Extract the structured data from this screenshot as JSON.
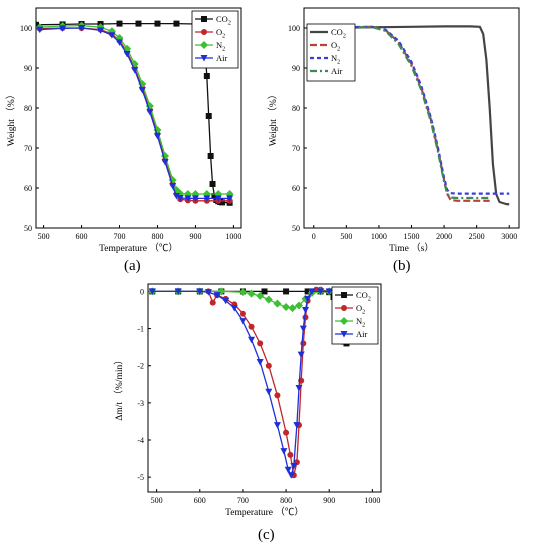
{
  "colors": {
    "co2": "#111111",
    "o2": "#c0262a",
    "n2": "#3dbf34",
    "air": "#1f2fd6",
    "b_co2": "#444444",
    "b_o2": "#b8433a",
    "b_n2": "#3a3ce0",
    "b_air": "#3d8a55"
  },
  "panel_labels": {
    "a": "(a)",
    "b": "(b)",
    "c": "(c)"
  },
  "chart_data": [
    {
      "id": "a",
      "type": "line",
      "xlabel": "Temperature （℃）",
      "ylabel": "Weight （%）",
      "xlim": [
        480,
        1020
      ],
      "ylim": [
        50,
        105
      ],
      "xticks": [
        500,
        600,
        700,
        800,
        900,
        1000
      ],
      "yticks": [
        50,
        60,
        70,
        80,
        90,
        100
      ],
      "legend": "top-right",
      "series": [
        {
          "name": "CO2",
          "label_main": "CO",
          "label_sub": "2",
          "color": "co2",
          "marker": "square",
          "x": [
            480,
            550,
            600,
            650,
            700,
            750,
            800,
            850,
            900,
            910,
            920,
            925,
            930,
            935,
            940,
            945,
            950,
            955,
            960,
            965,
            970,
            990
          ],
          "y": [
            100.8,
            100.9,
            101.0,
            101.0,
            101.1,
            101.1,
            101.1,
            101.1,
            101.0,
            100.6,
            98.5,
            95.0,
            88.0,
            78.0,
            68.0,
            61.0,
            58.0,
            57.0,
            56.7,
            56.5,
            56.4,
            56.3
          ]
        },
        {
          "name": "O2",
          "label_main": "O",
          "label_sub": "2",
          "color": "o2",
          "marker": "circle",
          "x": [
            490,
            550,
            600,
            650,
            680,
            700,
            720,
            740,
            760,
            780,
            800,
            820,
            840,
            850,
            860,
            880,
            900,
            930,
            960,
            990
          ],
          "y": [
            99.8,
            100.0,
            100.0,
            99.6,
            98.5,
            96.8,
            94.0,
            90.0,
            85.0,
            79.5,
            73.5,
            67.0,
            61.0,
            58.5,
            57.2,
            56.9,
            56.8,
            56.8,
            56.8,
            56.8
          ]
        },
        {
          "name": "N2",
          "label_main": "N",
          "label_sub": "2",
          "color": "n2",
          "marker": "diamond",
          "x": [
            490,
            550,
            600,
            650,
            680,
            700,
            720,
            740,
            760,
            780,
            800,
            820,
            840,
            850,
            860,
            880,
            900,
            930,
            960,
            990
          ],
          "y": [
            100.2,
            100.5,
            100.6,
            100.2,
            99.2,
            97.5,
            94.8,
            91.0,
            86.0,
            80.5,
            74.5,
            68.0,
            62.0,
            59.5,
            58.6,
            58.5,
            58.5,
            58.5,
            58.5,
            58.5
          ]
        },
        {
          "name": "Air",
          "label_main": "Air",
          "label_sub": "",
          "color": "air",
          "marker": "tri-down",
          "x": [
            490,
            550,
            600,
            650,
            680,
            700,
            720,
            740,
            760,
            780,
            800,
            820,
            840,
            850,
            860,
            880,
            900,
            930,
            960,
            990
          ],
          "y": [
            99.6,
            99.9,
            100.0,
            99.4,
            98.2,
            96.4,
            93.5,
            89.5,
            84.5,
            79.0,
            73.0,
            66.5,
            60.5,
            58.0,
            57.5,
            57.4,
            57.4,
            57.4,
            57.4,
            57.4
          ]
        }
      ]
    },
    {
      "id": "b",
      "type": "line",
      "xlabel": "Time （s）",
      "ylabel": "Weight （%）",
      "xlim": [
        -150,
        3150
      ],
      "ylim": [
        50,
        105
      ],
      "xticks": [
        0,
        500,
        1000,
        1500,
        2000,
        2500,
        3000
      ],
      "yticks": [
        50,
        60,
        70,
        80,
        90,
        100
      ],
      "legend": "top-left",
      "series": [
        {
          "name": "CO2",
          "label_main": "CO",
          "label_sub": "2",
          "color": "b_co2",
          "dash": "solid",
          "x": [
            0,
            500,
            1000,
            1500,
            2000,
            2400,
            2550,
            2600,
            2650,
            2700,
            2750,
            2800,
            2850,
            2950,
            3000
          ],
          "y": [
            99.9,
            100.1,
            100.2,
            100.3,
            100.4,
            100.4,
            100.3,
            98.5,
            92.0,
            80.0,
            66.0,
            58.5,
            56.5,
            56.0,
            55.9
          ]
        },
        {
          "name": "O2",
          "label_main": "O",
          "label_sub": "2",
          "color": "b_o2",
          "dash": "long",
          "x": [
            0,
            500,
            900,
            1100,
            1300,
            1500,
            1650,
            1800,
            1900,
            2000,
            2050,
            2100,
            2200,
            2500,
            2700
          ],
          "y": [
            100.0,
            100.2,
            100.3,
            99.5,
            96.5,
            91.0,
            85.0,
            77.0,
            70.0,
            62.0,
            58.5,
            57.0,
            56.8,
            56.8,
            56.8
          ]
        },
        {
          "name": "N2",
          "label_main": "N",
          "label_sub": "2",
          "color": "b_n2",
          "dash": "short",
          "x": [
            0,
            500,
            900,
            1100,
            1300,
            1500,
            1650,
            1800,
            1900,
            2000,
            2050,
            2100,
            2200,
            2500,
            3000
          ],
          "y": [
            100.0,
            100.2,
            100.3,
            99.6,
            96.8,
            91.5,
            85.5,
            77.5,
            70.5,
            62.5,
            59.5,
            58.7,
            58.6,
            58.6,
            58.6
          ]
        },
        {
          "name": "Air",
          "label_main": "Air",
          "label_sub": "",
          "color": "b_air",
          "dash": "dashdot",
          "x": [
            0,
            500,
            900,
            1100,
            1300,
            1500,
            1650,
            1800,
            1900,
            2000,
            2050,
            2100,
            2200,
            2500,
            2700
          ],
          "y": [
            100.0,
            100.2,
            100.2,
            99.3,
            96.0,
            90.5,
            84.5,
            76.5,
            69.5,
            61.5,
            58.5,
            57.6,
            57.5,
            57.5,
            57.5
          ]
        }
      ]
    },
    {
      "id": "c",
      "type": "line",
      "xlabel": "Temperature （℃）",
      "ylabel": "Δm/t （%/min）",
      "xlim": [
        480,
        1020
      ],
      "ylim": [
        -5.4,
        0.2
      ],
      "xticks": [
        500,
        600,
        700,
        800,
        900,
        1000
      ],
      "yticks": [
        0,
        -1,
        -2,
        -3,
        -4,
        -5
      ],
      "legend": "top-right",
      "series": [
        {
          "name": "CO2",
          "label_main": "CO",
          "label_sub": "2",
          "color": "co2",
          "marker": "square",
          "x": [
            490,
            550,
            600,
            650,
            700,
            750,
            800,
            850,
            880,
            900,
            910,
            920,
            930,
            935,
            940,
            945,
            950,
            960,
            970,
            980,
            990
          ],
          "y": [
            0,
            0,
            0,
            0,
            0,
            0,
            0,
            0,
            0,
            -0.02,
            -0.15,
            -0.55,
            -1.1,
            -1.35,
            -1.4,
            -1.3,
            -1.0,
            -0.4,
            -0.08,
            0,
            0
          ]
        },
        {
          "name": "O2",
          "label_main": "O",
          "label_sub": "2",
          "color": "o2",
          "marker": "circle",
          "x": [
            490,
            550,
            600,
            620,
            630,
            640,
            660,
            680,
            700,
            720,
            740,
            760,
            780,
            800,
            810,
            818,
            825,
            830,
            835,
            840,
            845,
            850,
            860,
            870,
            880,
            900
          ],
          "y": [
            0,
            0,
            0,
            0,
            -0.3,
            -0.1,
            -0.2,
            -0.35,
            -0.6,
            -0.95,
            -1.4,
            -2.0,
            -2.8,
            -3.8,
            -4.4,
            -4.95,
            -4.6,
            -3.6,
            -2.4,
            -1.4,
            -0.7,
            -0.25,
            0,
            0.05,
            0.05,
            0
          ]
        },
        {
          "name": "N2",
          "label_main": "N",
          "label_sub": "2",
          "color": "n2",
          "marker": "diamond",
          "x": [
            490,
            550,
            600,
            650,
            700,
            720,
            740,
            760,
            780,
            800,
            815,
            830,
            845,
            860,
            880,
            900,
            950,
            990
          ],
          "y": [
            0,
            0,
            0,
            0,
            -0.02,
            -0.06,
            -0.12,
            -0.22,
            -0.33,
            -0.42,
            -0.45,
            -0.38,
            -0.2,
            -0.04,
            0,
            0,
            0,
            0
          ]
        },
        {
          "name": "Air",
          "label_main": "Air",
          "label_sub": "",
          "color": "air",
          "marker": "tri-down",
          "x": [
            490,
            550,
            600,
            620,
            640,
            660,
            680,
            700,
            720,
            740,
            760,
            780,
            795,
            805,
            812,
            818,
            825,
            830,
            835,
            840,
            845,
            850,
            860,
            880,
            900
          ],
          "y": [
            0,
            0,
            0,
            -0.02,
            -0.1,
            -0.25,
            -0.45,
            -0.8,
            -1.3,
            -1.9,
            -2.7,
            -3.6,
            -4.3,
            -4.8,
            -4.95,
            -4.7,
            -3.6,
            -2.6,
            -1.7,
            -1.0,
            -0.5,
            -0.2,
            0,
            0,
            0
          ]
        }
      ]
    }
  ]
}
